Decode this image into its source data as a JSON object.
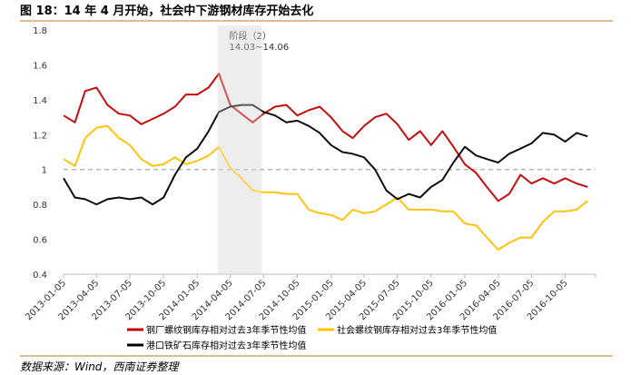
{
  "title": "图 18：14 年 4 月开始，社会中下游钢材库存开始去化",
  "source": "数据来源：Wind，西南证券整理",
  "chart_data": {
    "type": "line",
    "title": "",
    "xlabel": "",
    "ylabel": "",
    "ylim": [
      0.4,
      1.8
    ],
    "yticks": [
      "1.8",
      "1.6",
      "1.4",
      "1.2",
      "1",
      "0.8",
      "0.6",
      "0.4"
    ],
    "ytick_values": [
      1.8,
      1.6,
      1.4,
      1.2,
      1.0,
      0.8,
      0.6,
      0.4
    ],
    "xticks": [
      "2013-01-05",
      "2013-04-05",
      "2013-07-05",
      "2013-10-05",
      "2014-01-05",
      "2014-04-05",
      "2014-07-05",
      "2014-10-05",
      "2015-01-05",
      "2015-04-05",
      "2015-07-05",
      "2015-10-05",
      "2016-01-05",
      "2016-04-05",
      "2016-07-05",
      "2016-10-05"
    ],
    "xlim": [
      "2013-01-05",
      "2016-12-20"
    ],
    "grid": false,
    "reference_line": {
      "y": 1.0,
      "style": "dashed",
      "color": "#aaaaaa"
    },
    "shaded_region": {
      "from": "2014-03-01",
      "to": "2014-06-30",
      "label_line1": "阶段（2）",
      "label_line2": "14.03~14.06",
      "color": "#e6e6e6"
    },
    "legend_placement": "bottom",
    "x": [
      "2013-01-05",
      "2013-02-05",
      "2013-03-05",
      "2013-04-05",
      "2013-05-05",
      "2013-06-05",
      "2013-07-05",
      "2013-08-05",
      "2013-09-05",
      "2013-10-05",
      "2013-11-05",
      "2013-12-05",
      "2014-01-05",
      "2014-02-05",
      "2014-03-05",
      "2014-04-05",
      "2014-05-05",
      "2014-06-05",
      "2014-07-05",
      "2014-08-05",
      "2014-09-05",
      "2014-10-05",
      "2014-11-05",
      "2014-12-05",
      "2015-01-05",
      "2015-02-05",
      "2015-03-05",
      "2015-04-05",
      "2015-05-05",
      "2015-06-05",
      "2015-07-05",
      "2015-08-05",
      "2015-09-05",
      "2015-10-05",
      "2015-11-05",
      "2015-12-05",
      "2016-01-05",
      "2016-02-05",
      "2016-03-05",
      "2016-04-05",
      "2016-05-05",
      "2016-06-05",
      "2016-07-05",
      "2016-08-05",
      "2016-09-05",
      "2016-10-05",
      "2016-11-05",
      "2016-12-05"
    ],
    "series": [
      {
        "name": "钢厂螺纹钢库存相对过去3年季节性均值",
        "color": "#c00000",
        "values": [
          1.31,
          1.27,
          1.45,
          1.47,
          1.37,
          1.32,
          1.31,
          1.26,
          1.29,
          1.32,
          1.36,
          1.43,
          1.43,
          1.47,
          1.55,
          1.37,
          1.32,
          1.27,
          1.32,
          1.36,
          1.37,
          1.31,
          1.34,
          1.36,
          1.3,
          1.22,
          1.18,
          1.25,
          1.3,
          1.32,
          1.26,
          1.17,
          1.22,
          1.14,
          1.22,
          1.13,
          1.03,
          0.98,
          0.9,
          0.82,
          0.86,
          0.97,
          0.92,
          0.95,
          0.92,
          0.95,
          0.92,
          0.9
        ]
      },
      {
        "name": "社会螺纹钢库存相对过去3年季节性均值",
        "color": "#ffc000",
        "values": [
          1.06,
          1.02,
          1.18,
          1.24,
          1.25,
          1.18,
          1.14,
          1.06,
          1.02,
          1.03,
          1.07,
          1.03,
          1.05,
          1.08,
          1.13,
          1.01,
          0.95,
          0.88,
          0.87,
          0.87,
          0.86,
          0.86,
          0.77,
          0.75,
          0.74,
          0.71,
          0.77,
          0.75,
          0.76,
          0.8,
          0.84,
          0.77,
          0.77,
          0.77,
          0.76,
          0.76,
          0.69,
          0.68,
          0.61,
          0.54,
          0.58,
          0.61,
          0.61,
          0.7,
          0.76,
          0.76,
          0.77,
          0.82
        ]
      },
      {
        "name": "港口铁矿石库存相对过去3年季节性均值",
        "color": "#000000",
        "values": [
          0.95,
          0.84,
          0.83,
          0.8,
          0.83,
          0.84,
          0.83,
          0.84,
          0.8,
          0.84,
          0.97,
          1.07,
          1.12,
          1.22,
          1.33,
          1.36,
          1.37,
          1.37,
          1.33,
          1.31,
          1.27,
          1.28,
          1.25,
          1.21,
          1.14,
          1.1,
          1.09,
          1.07,
          1.0,
          0.88,
          0.83,
          0.86,
          0.84,
          0.9,
          0.94,
          1.04,
          1.13,
          1.08,
          1.06,
          1.04,
          1.09,
          1.12,
          1.15,
          1.21,
          1.2,
          1.16,
          1.21,
          1.19
        ]
      }
    ]
  }
}
